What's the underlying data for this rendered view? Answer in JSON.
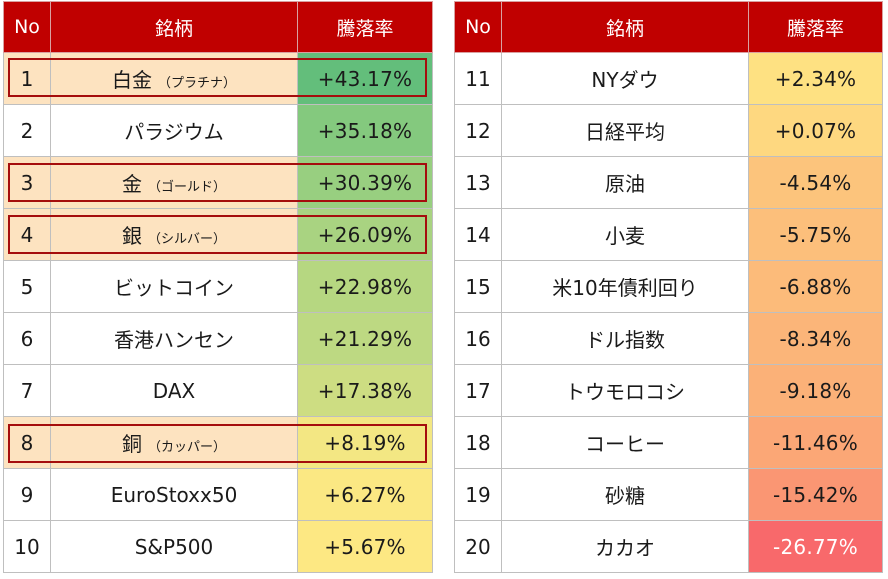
{
  "headers": {
    "no": "No",
    "name": "銘柄",
    "rate": "騰落率"
  },
  "left_rows": [
    {
      "no": "1",
      "name": "白金",
      "sub": "（プラチナ）",
      "rate": "+43.17%",
      "color": "#63be7b",
      "highlight": true
    },
    {
      "no": "2",
      "name": "パラジウム",
      "sub": "",
      "rate": "+35.18%",
      "color": "#84c97e",
      "highlight": false
    },
    {
      "no": "3",
      "name": "金",
      "sub": "（ゴールド）",
      "rate": "+30.39%",
      "color": "#98cf80",
      "highlight": true
    },
    {
      "no": "4",
      "name": "銀",
      "sub": "（シルバー）",
      "rate": "+26.09%",
      "color": "#a9d381",
      "highlight": true
    },
    {
      "no": "5",
      "name": "ビットコイン",
      "sub": "",
      "rate": "+22.98%",
      "color": "#b6d781",
      "highlight": false
    },
    {
      "no": "6",
      "name": "香港ハンセン",
      "sub": "",
      "rate": "+21.29%",
      "color": "#bdd982",
      "highlight": false
    },
    {
      "no": "7",
      "name": "DAX",
      "sub": "",
      "rate": "+17.38%",
      "color": "#cddd82",
      "highlight": false
    },
    {
      "no": "8",
      "name": "銅",
      "sub": "（カッパー）",
      "rate": "+8.19%",
      "color": "#f3e783",
      "highlight": true
    },
    {
      "no": "9",
      "name": "EuroStoxx50",
      "sub": "",
      "rate": "+6.27%",
      "color": "#fbe883",
      "highlight": false
    },
    {
      "no": "10",
      "name": "S&P500",
      "sub": "",
      "rate": "+5.67%",
      "color": "#fde883",
      "highlight": false
    }
  ],
  "right_rows": [
    {
      "no": "11",
      "name": "NYダウ",
      "rate": "+2.34%",
      "color": "#fee182"
    },
    {
      "no": "12",
      "name": "日経平均",
      "rate": "+0.07%",
      "color": "#fed880"
    },
    {
      "no": "13",
      "name": "原油",
      "rate": "-4.54%",
      "color": "#fcc47c"
    },
    {
      "no": "14",
      "name": "小麦",
      "rate": "-5.75%",
      "color": "#fcbf7b"
    },
    {
      "no": "15",
      "name": "米10年債利回り",
      "rate": "-6.88%",
      "color": "#fcbb7a"
    },
    {
      "no": "16",
      "name": "ドル指数",
      "rate": "-8.34%",
      "color": "#fbb579"
    },
    {
      "no": "17",
      "name": "トウモロコシ",
      "rate": "-9.18%",
      "color": "#fbb178"
    },
    {
      "no": "18",
      "name": "コーヒー",
      "rate": "-11.46%",
      "color": "#fba776"
    },
    {
      "no": "19",
      "name": "砂糖",
      "rate": "-15.42%",
      "color": "#fa9673"
    },
    {
      "no": "20",
      "name": "カカオ",
      "rate": "-26.77%",
      "color": "#f8696b"
    }
  ],
  "chart_data": {
    "type": "table",
    "columns": [
      "No",
      "銘柄",
      "騰落率"
    ],
    "rows": [
      [
        "1",
        "白金（プラチナ）",
        "+43.17%"
      ],
      [
        "2",
        "パラジウム",
        "+35.18%"
      ],
      [
        "3",
        "金（ゴールド）",
        "+30.39%"
      ],
      [
        "4",
        "銀（シルバー）",
        "+26.09%"
      ],
      [
        "5",
        "ビットコイン",
        "+22.98%"
      ],
      [
        "6",
        "香港ハンセン",
        "+21.29%"
      ],
      [
        "7",
        "DAX",
        "+17.38%"
      ],
      [
        "8",
        "銅（カッパー）",
        "+8.19%"
      ],
      [
        "9",
        "EuroStoxx50",
        "+6.27%"
      ],
      [
        "10",
        "S&P500",
        "+5.67%"
      ],
      [
        "11",
        "NYダウ",
        "+2.34%"
      ],
      [
        "12",
        "日経平均",
        "+0.07%"
      ],
      [
        "13",
        "原油",
        "-4.54%"
      ],
      [
        "14",
        "小麦",
        "-5.75%"
      ],
      [
        "15",
        "米10年債利回り",
        "-6.88%"
      ],
      [
        "16",
        "ドル指数",
        "-8.34%"
      ],
      [
        "17",
        "トウモロコシ",
        "-9.18%"
      ],
      [
        "18",
        "コーヒー",
        "-11.46%"
      ],
      [
        "19",
        "砂糖",
        "-15.42%"
      ],
      [
        "20",
        "カカオ",
        "-26.77%"
      ]
    ]
  }
}
